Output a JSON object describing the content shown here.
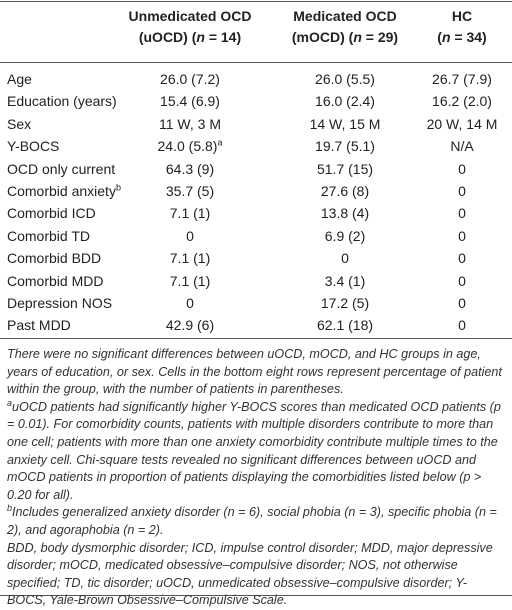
{
  "table": {
    "header": [
      {
        "line1": "Unmedicated OCD",
        "line2": [
          "(uOCD) (",
          "n",
          " = 14)"
        ]
      },
      {
        "line1": "Medicated OCD",
        "line2": [
          "(mOCD) (",
          "n",
          " = 29)"
        ]
      },
      {
        "line1": "HC",
        "line2": [
          "(",
          "n",
          " = 34)"
        ]
      }
    ],
    "rows": [
      [
        "Age",
        "26.0 (7.2)",
        "26.0 (5.5)",
        "26.7 (7.9)"
      ],
      [
        "Education (years)",
        "15.4 (6.9)",
        "16.0 (2.4)",
        "16.2 (2.0)"
      ],
      [
        "Sex",
        "11 W, 3 M",
        "14 W, 15 M",
        "20 W, 14 M"
      ],
      [
        "Y-BOCS",
        {
          "text": "24.0 (5.8)",
          "sup": "a"
        },
        "19.7 (5.1)",
        "N/A"
      ],
      [
        "OCD only current",
        "64.3 (9)",
        "51.7 (15)",
        "0"
      ],
      [
        {
          "text": "Comorbid anxiety",
          "sup": "b"
        },
        "35.7 (5)",
        "27.6 (8)",
        "0"
      ],
      [
        "Comorbid ICD",
        "7.1 (1)",
        "13.8 (4)",
        "0"
      ],
      [
        "Comorbid TD",
        "0",
        "6.9 (2)",
        "0"
      ],
      [
        "Comorbid BDD",
        "7.1 (1)",
        "0",
        "0"
      ],
      [
        "Comorbid MDD",
        "7.1 (1)",
        "3.4 (1)",
        "0"
      ],
      [
        "Depression NOS",
        "0",
        "17.2 (5)",
        "0"
      ],
      [
        "Past MDD",
        "42.9 (6)",
        "62.1 (18)",
        "0"
      ]
    ],
    "notes": [
      {
        "text": "There were no significant differences between uOCD, mOCD, and HC groups in age, years of education, or sex. Cells in the bottom eight rows represent percentage of patient within the group, with the number of patients in parentheses."
      },
      {
        "sup": "a",
        "text": "uOCD patients had significantly higher Y-BOCS scores than medicated OCD patients (p = 0.01). For comorbidity counts, patients with multiple disorders contribute to more than one cell; patients with more than one anxiety comorbidity contribute multiple times to the anxiety cell. Chi-square tests revealed no significant differences between uOCD and mOCD patients in proportion of patients displaying the comorbidities listed below (p > 0.20 for all)."
      },
      {
        "sup": "b",
        "text": "Includes generalized anxiety disorder (n = 6), social phobia (n = 3), specific phobia (n = 2), and agoraphobia (n = 2)."
      },
      {
        "text": "BDD, body dysmorphic disorder; ICD, impulse control disorder; MDD, major depressive disorder; mOCD, medicated obsessive–compulsive disorder; NOS, not otherwise specified; TD, tic disorder; uOCD, unmedicated obsessive–compulsive disorder; Y-BOCS, Yale-Brown Obsessive–Compulsive Scale."
      }
    ]
  }
}
